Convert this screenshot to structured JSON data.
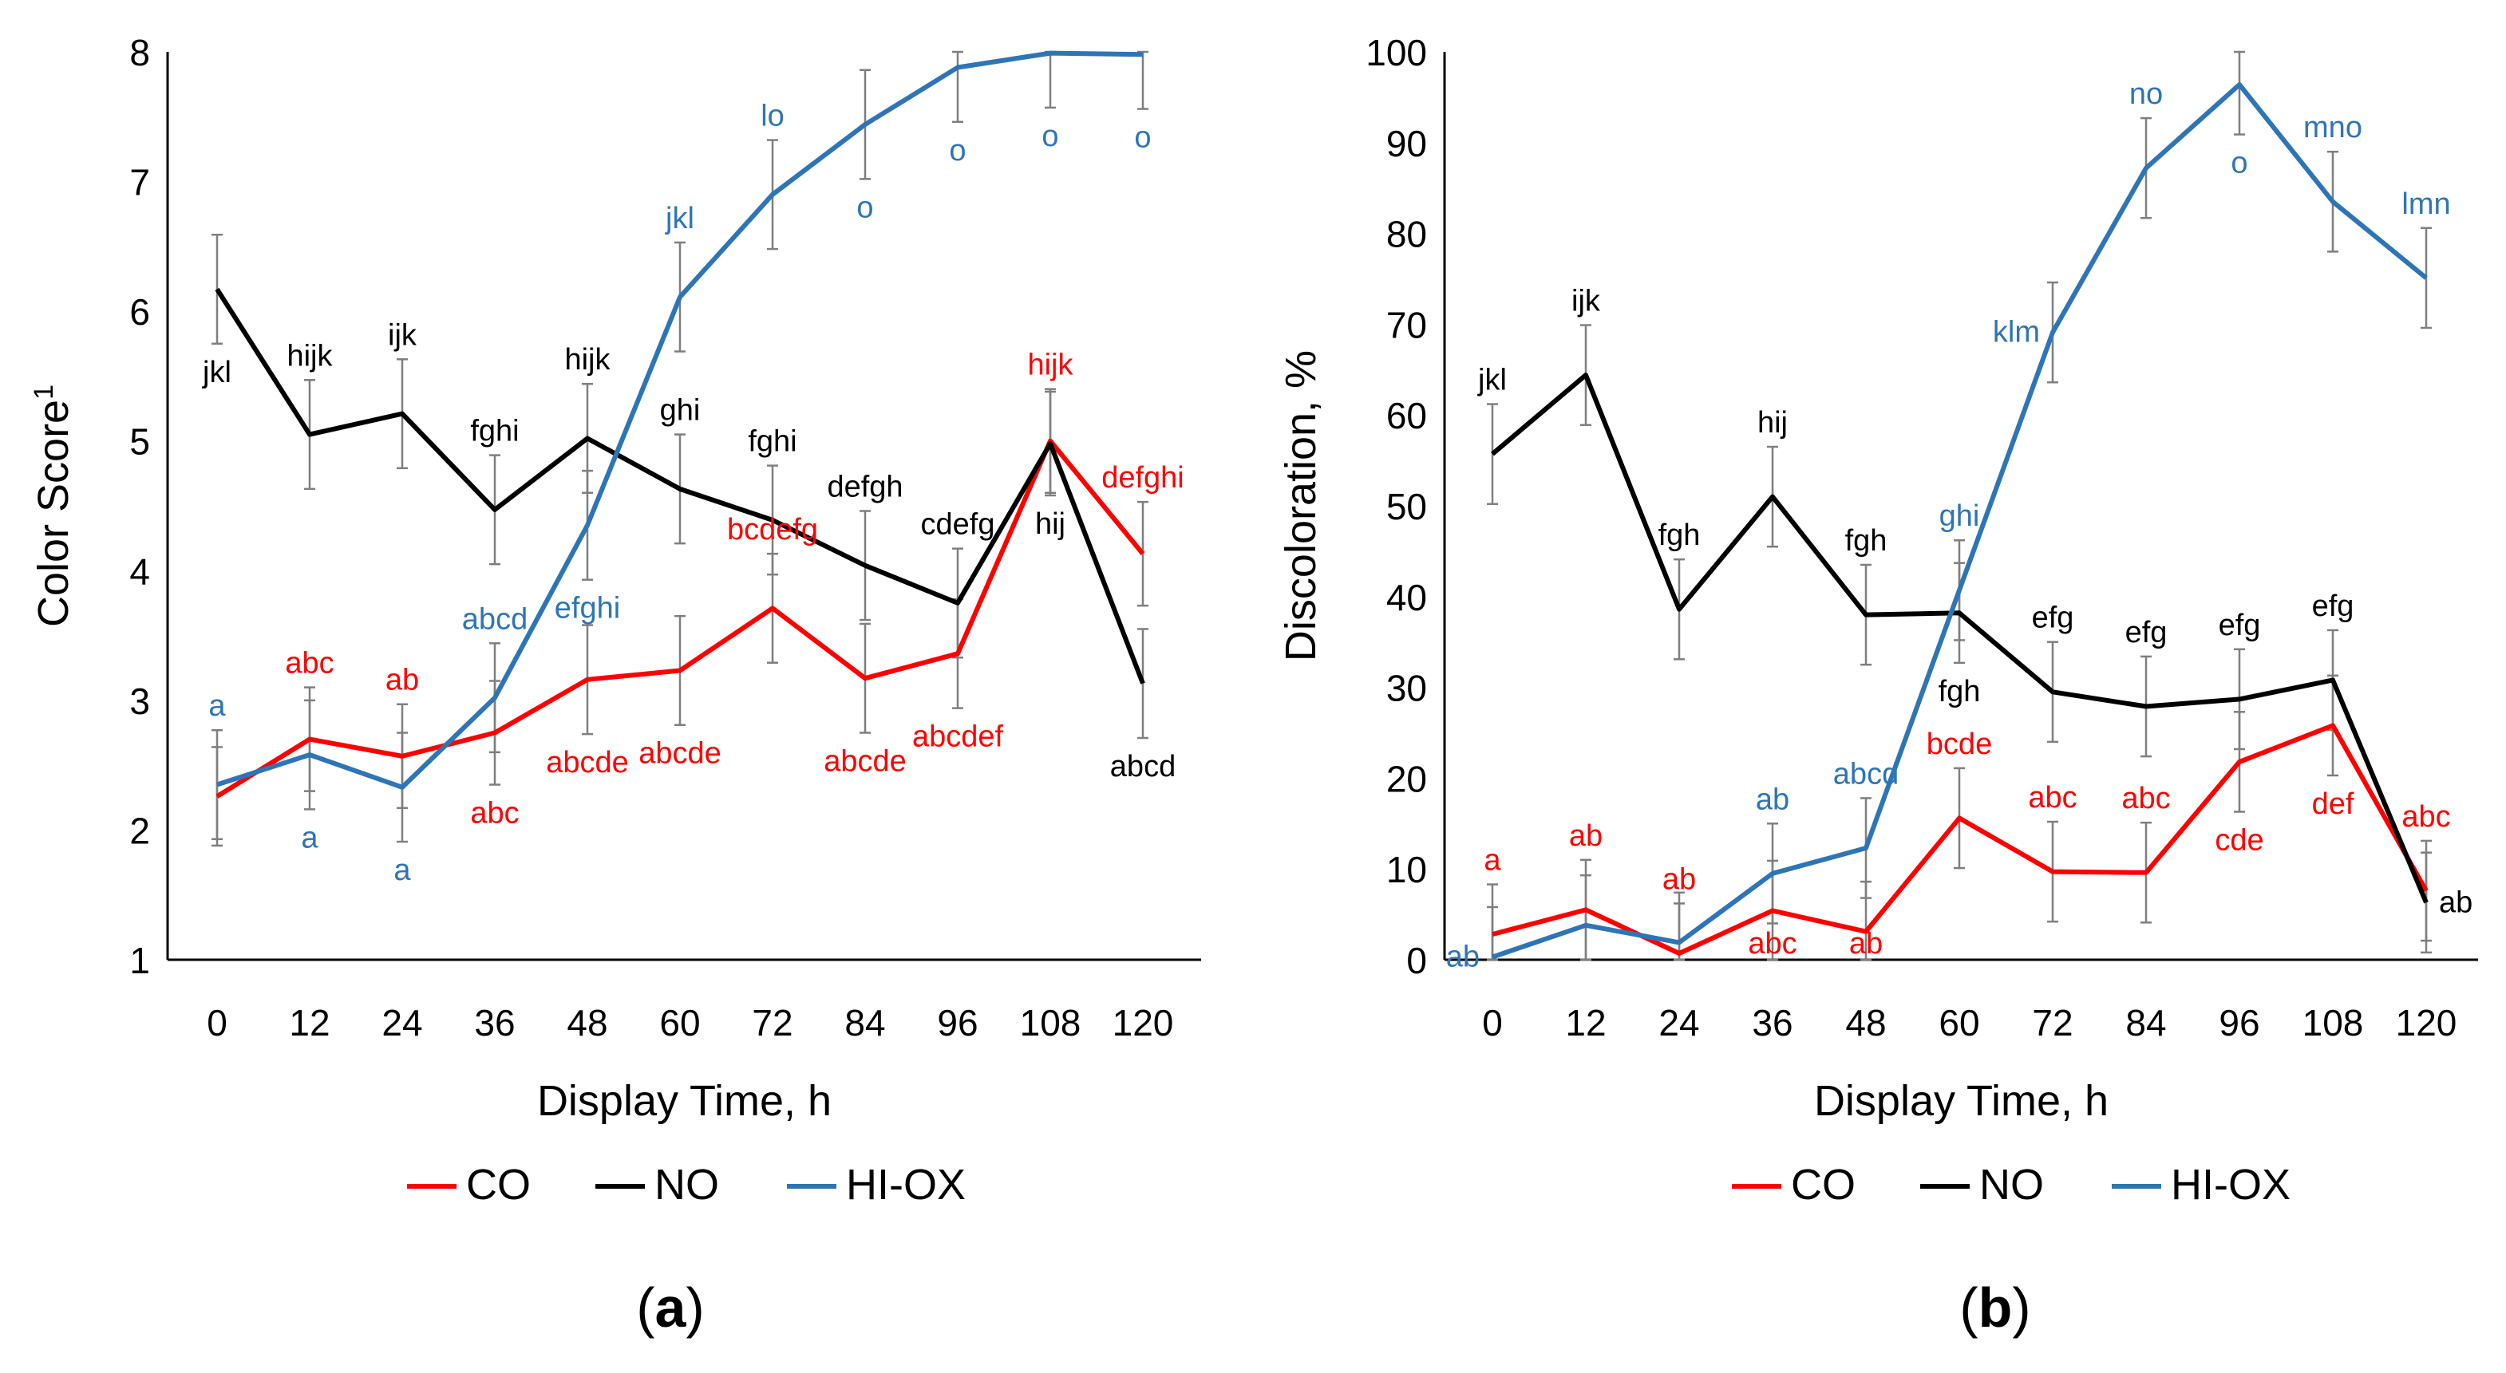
{
  "colors": {
    "CO": "#ff0000",
    "NO": "#000000",
    "HI-OX": "#2e75b6",
    "axis": "#000000",
    "errorbar": "#7f7f7f"
  },
  "chart_data": [
    {
      "type": "line",
      "panel_label": "(a)",
      "panel_letter": "a",
      "title": "",
      "xlabel": "Display Time, h",
      "ylabel": "Color Score",
      "ylabel_sup": "1",
      "categories": [
        "0",
        "12",
        "24",
        "36",
        "48",
        "60",
        "72",
        "84",
        "96",
        "108",
        "120"
      ],
      "ylim": [
        1,
        8
      ],
      "yticks": [
        1,
        2,
        3,
        4,
        5,
        6,
        7,
        8
      ],
      "legend_position": "bottom",
      "series": [
        {
          "name": "CO",
          "color_key": "CO",
          "values": [
            2.26,
            2.7,
            2.57,
            2.75,
            3.16,
            3.23,
            3.71,
            3.17,
            3.36,
            5.0,
            4.13
          ],
          "errors": [
            0.38,
            0.4,
            0.4,
            0.4,
            0.42,
            0.42,
            0.42,
            0.42,
            0.42,
            0.4,
            0.4
          ],
          "letters": [
            "",
            "abc",
            "ab",
            "abc",
            "abcde",
            "abcde",
            "bcdefg",
            "abcde",
            "abcdef",
            "hijk",
            "defghi"
          ],
          "letter_pos": [
            "",
            "above",
            "above",
            "below",
            "below",
            "below",
            "above",
            "below",
            "below",
            "above",
            "above"
          ]
        },
        {
          "name": "NO",
          "color_key": "NO",
          "values": [
            6.17,
            5.05,
            5.21,
            4.47,
            5.02,
            4.63,
            4.39,
            4.04,
            3.75,
            4.98,
            3.13
          ],
          "errors": [
            0.42,
            0.42,
            0.42,
            0.42,
            0.42,
            0.42,
            0.42,
            0.42,
            0.42,
            0.4,
            0.42
          ],
          "letters": [
            "jkl",
            "hijk",
            "ijk",
            "fghi",
            "hijk",
            "ghi",
            "fghi",
            "defgh",
            "cdefg",
            "hij",
            "abcd"
          ],
          "letter_pos": [
            "below",
            "above",
            "above",
            "above",
            "above",
            "above",
            "above",
            "above",
            "above",
            "below",
            "below"
          ]
        },
        {
          "name": "HI-OX",
          "color_key": "HI-OX",
          "values": [
            2.35,
            2.58,
            2.33,
            3.02,
            4.35,
            6.11,
            6.9,
            7.44,
            7.88,
            7.99,
            7.98
          ],
          "errors": [
            0.42,
            0.42,
            0.42,
            0.42,
            0.42,
            0.42,
            0.42,
            0.42,
            0.42,
            0.42,
            0.42
          ],
          "letters": [
            "a",
            "a",
            "a",
            "abcd",
            "efghi",
            "jkl",
            "lo",
            "o",
            "o",
            "o",
            "o"
          ],
          "letter_pos": [
            "above",
            "below",
            "below",
            "above",
            "below",
            "above",
            "above",
            "below",
            "below",
            "below",
            "below"
          ]
        }
      ]
    },
    {
      "type": "line",
      "panel_label": "(b)",
      "panel_letter": "b",
      "title": "",
      "xlabel": "Display Time, h",
      "ylabel": "Discoloration, %",
      "categories": [
        "0",
        "12",
        "24",
        "36",
        "48",
        "60",
        "72",
        "84",
        "96",
        "108",
        "120"
      ],
      "ylim": [
        0,
        100
      ],
      "yticks": [
        0,
        10,
        20,
        30,
        40,
        50,
        60,
        70,
        80,
        90,
        100
      ],
      "legend_position": "bottom",
      "series": [
        {
          "name": "CO",
          "color_key": "CO",
          "values": [
            2.8,
            5.5,
            0.7,
            5.4,
            3.1,
            15.6,
            9.7,
            9.6,
            21.8,
            25.8,
            7.6
          ],
          "errors": [
            5.5,
            5.5,
            5.5,
            5.5,
            5.5,
            5.5,
            5.5,
            5.5,
            5.5,
            5.5,
            5.5
          ],
          "letters": [
            "a",
            "ab",
            "ab",
            "abc",
            "ab",
            "bcde",
            "abc",
            "abc",
            "cde",
            "def",
            "abc"
          ],
          "letter_pos": [
            "above",
            "above",
            "above",
            "below",
            "below",
            "above",
            "above",
            "above",
            "below",
            "below",
            "above"
          ]
        },
        {
          "name": "NO",
          "color_key": "NO",
          "values": [
            55.7,
            64.4,
            38.6,
            51.0,
            38.0,
            38.2,
            29.5,
            27.9,
            28.7,
            30.8,
            6.3
          ],
          "errors": [
            5.5,
            5.5,
            5.5,
            5.5,
            5.5,
            5.5,
            5.5,
            5.5,
            5.5,
            5.5,
            5.5
          ],
          "letters": [
            "jkl",
            "ijk",
            "fgh",
            "hij",
            "fgh",
            "fgh",
            "efg",
            "efg",
            "efg",
            "efg",
            "ab"
          ],
          "letter_pos": [
            "above",
            "above",
            "above",
            "above",
            "above",
            "below",
            "above",
            "above",
            "above",
            "above",
            "right"
          ]
        },
        {
          "name": "HI-OX",
          "color_key": "HI-OX",
          "values": [
            0.3,
            3.8,
            1.9,
            9.5,
            12.3,
            40.7,
            69.1,
            87.2,
            96.4,
            83.5,
            75.1
          ],
          "errors": [
            5.5,
            5.5,
            5.5,
            5.5,
            5.5,
            5.5,
            5.5,
            5.5,
            5.5,
            5.5,
            5.5
          ],
          "letters": [
            "ab",
            "",
            "",
            "ab",
            "abcd",
            "ghi",
            "klm",
            "no",
            "o",
            "mno",
            "lmn"
          ],
          "letter_pos": [
            "left",
            "",
            "",
            "above",
            "above",
            "above",
            "left",
            "above",
            "below",
            "above",
            "above"
          ]
        }
      ]
    }
  ]
}
